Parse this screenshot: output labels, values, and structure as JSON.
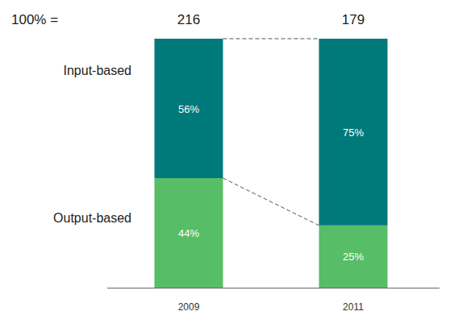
{
  "chart_data": {
    "type": "bar",
    "stacked": true,
    "data_labels": true,
    "tick_labels": "x",
    "categories": [
      "2009",
      "2011"
    ],
    "total_label": "100% =",
    "totals": [
      216,
      179
    ],
    "ylim": [
      0,
      100
    ],
    "series": [
      {
        "name": "Input-based",
        "color": "#00797a",
        "values": [
          56,
          75
        ],
        "value_labels": [
          "56%",
          "75%"
        ]
      },
      {
        "name": "Output-based",
        "color": "#57bd66",
        "values": [
          44,
          25
        ],
        "value_labels": [
          "44%",
          "25%"
        ]
      }
    ]
  }
}
